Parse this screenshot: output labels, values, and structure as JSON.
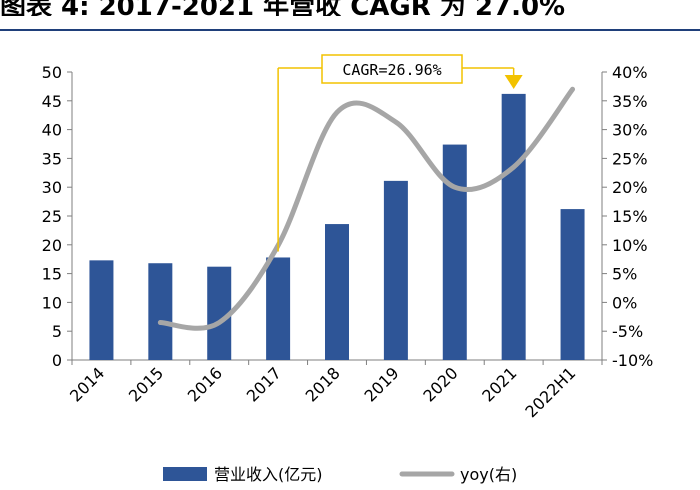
{
  "title": "图表 4:  2017-2021 年营收 CAGR 为 27.0%",
  "chart_data": {
    "type": "bar",
    "categories": [
      "2014",
      "2015",
      "2016",
      "2017",
      "2018",
      "2019",
      "2020",
      "2021",
      "2022H1"
    ],
    "series": [
      {
        "name": "营业收入(亿元)",
        "type": "bar",
        "axis": "left",
        "values": [
          17.3,
          16.8,
          16.2,
          17.8,
          23.6,
          31.1,
          37.4,
          46.2,
          26.2
        ]
      },
      {
        "name": "yoy(右)",
        "type": "line",
        "axis": "right",
        "values": [
          null,
          -3.5,
          -3.5,
          9.9,
          33.0,
          31.3,
          20.0,
          23.5,
          37.0
        ]
      }
    ],
    "y_left": {
      "min": 0,
      "max": 50,
      "step": 5,
      "tick_labels": [
        "0",
        "5",
        "10",
        "15",
        "20",
        "25",
        "30",
        "35",
        "40",
        "45",
        "50"
      ]
    },
    "y_right": {
      "min": -10,
      "max": 40,
      "step": 5,
      "tick_labels": [
        "-10%",
        "-5%",
        "0%",
        "5%",
        "10%",
        "15%",
        "20%",
        "25%",
        "30%",
        "35%",
        "40%"
      ]
    },
    "annotation": {
      "text": "CAGR=26.96%",
      "from": "2017",
      "to": "2021"
    },
    "colors": {
      "bar": "#2e5597",
      "line": "#a6a6a6",
      "annotation": "#f2c200",
      "axis": "#7f7f7f"
    },
    "legend": {
      "position": "bottom"
    },
    "grid": false
  }
}
